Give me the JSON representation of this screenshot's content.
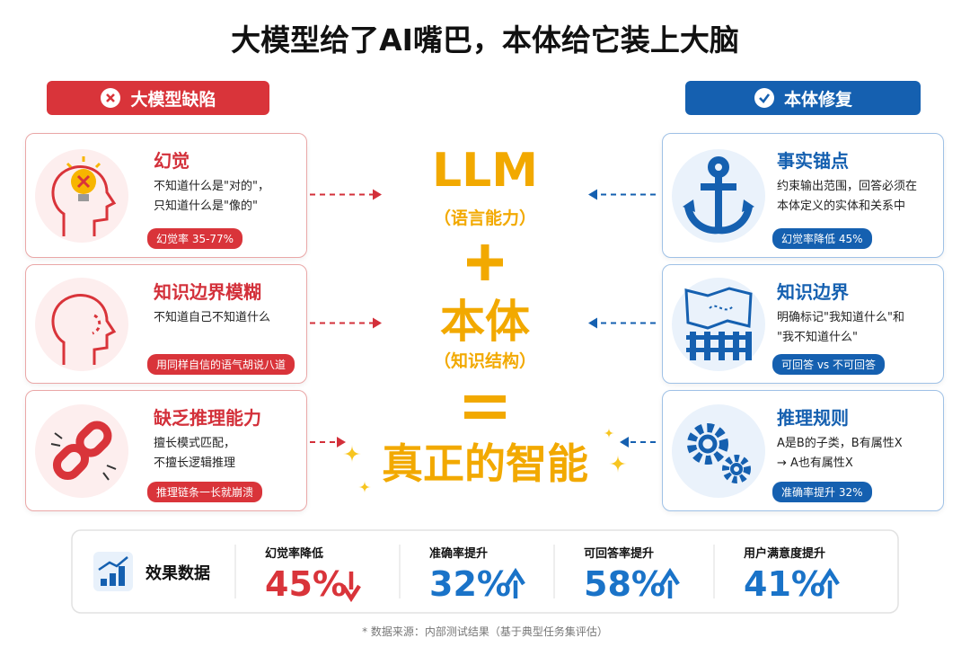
{
  "title": "大模型给了AI嘴巴，本体给它装上大脑",
  "left": {
    "header": "大模型缺陷",
    "cards": [
      {
        "title": "幻觉",
        "lines": [
          "不知道什么是\"对的\"，",
          "只知道什么是\"像的\""
        ],
        "badge": "幻觉率 35-77%"
      },
      {
        "title": "知识边界模糊",
        "lines": [
          "不知道自己不知道什么"
        ],
        "badge": "用同样自信的语气胡说八道"
      },
      {
        "title": "缺乏推理能力",
        "lines": [
          "擅长模式匹配，",
          "不擅长逻辑推理"
        ],
        "badge": "推理链条一长就崩溃"
      }
    ]
  },
  "right": {
    "header": "本体修复",
    "cards": [
      {
        "title": "事实锚点",
        "lines": [
          "约束输出范围，回答必须在",
          "本体定义的实体和关系中"
        ],
        "badge": "幻觉率降低 45%"
      },
      {
        "title": "知识边界",
        "lines": [
          "明确标记\"我知道什么\"和",
          "\"我不知道什么\""
        ],
        "badge": "可回答 vs 不可回答"
      },
      {
        "title": "推理规则",
        "lines": [
          "A是B的子类，B有属性X",
          "→ A也有属性X"
        ],
        "badge": "准确率提升 32%"
      }
    ]
  },
  "center": {
    "llm": "LLM",
    "llm_sub": "（语言能力）",
    "ontology": "本体",
    "ontology_sub": "（知识结构）",
    "result": "真正的智能"
  },
  "metrics": {
    "label": "效果数据",
    "items": [
      {
        "label": "幻觉率降低",
        "value": "45%",
        "direction": "down"
      },
      {
        "label": "准确率提升",
        "value": "32%",
        "direction": "up"
      },
      {
        "label": "可回答率提升",
        "value": "58%",
        "direction": "up"
      },
      {
        "label": "用户满意度提升",
        "value": "41%",
        "direction": "up"
      }
    ]
  },
  "footnote": "* 数据来源：内部测试结果（基于典型任务集评估）"
}
